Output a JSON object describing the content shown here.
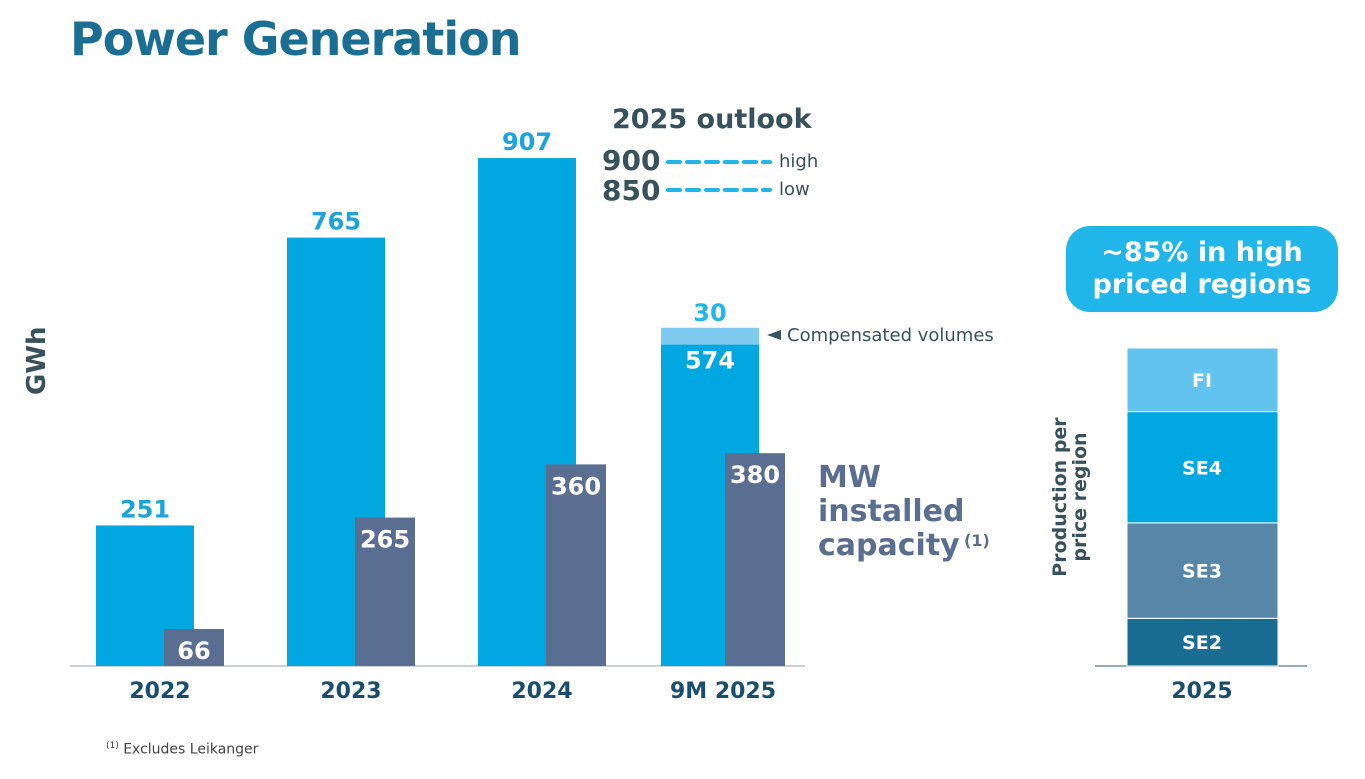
{
  "title": "Power Generation",
  "footnote": {
    "marker": "(1)",
    "text": "Excludes Leikanger"
  },
  "colors": {
    "gwh": "#00a7e1",
    "compensated": "#7fcbf0",
    "mw": "#5a6e92",
    "title": "#1a6e93",
    "dark_text": "#37525c",
    "fi": "#62c3ee",
    "se4": "#00a7e1",
    "se3": "#5786a6",
    "se2": "#1a6d92"
  },
  "chart_data": [
    {
      "type": "bar",
      "title": "Power Generation",
      "ylabel": "GWh",
      "categories": [
        "2022",
        "2023",
        "2024",
        "9M 2025"
      ],
      "series": [
        {
          "name": "GWh",
          "values": [
            251,
            765,
            907,
            574
          ]
        },
        {
          "name": "Compensated volumes",
          "values": [
            0,
            0,
            0,
            30
          ]
        },
        {
          "name": "MW installed capacity",
          "values": [
            66,
            265,
            360,
            380
          ]
        }
      ],
      "compensated_label": "Compensated volumes",
      "mw_label": [
        "MW",
        "installed",
        "capacity"
      ],
      "mw_footnote": "(1)",
      "outlook": {
        "title": "2025 outlook",
        "high": 900,
        "high_label": "high",
        "low": 850,
        "low_label": "low"
      },
      "ylim": [
        0,
        1000
      ]
    },
    {
      "type": "bar",
      "stacked": true,
      "ylabel": "Production per price region",
      "categories": [
        "2025"
      ],
      "segments": [
        {
          "name": "SE2",
          "value": 15
        },
        {
          "name": "SE3",
          "value": 30
        },
        {
          "name": "SE4",
          "value": 35
        },
        {
          "name": "FI",
          "value": 20
        }
      ],
      "unit": "percent (estimated)",
      "badge": "~85% in high priced regions"
    }
  ]
}
